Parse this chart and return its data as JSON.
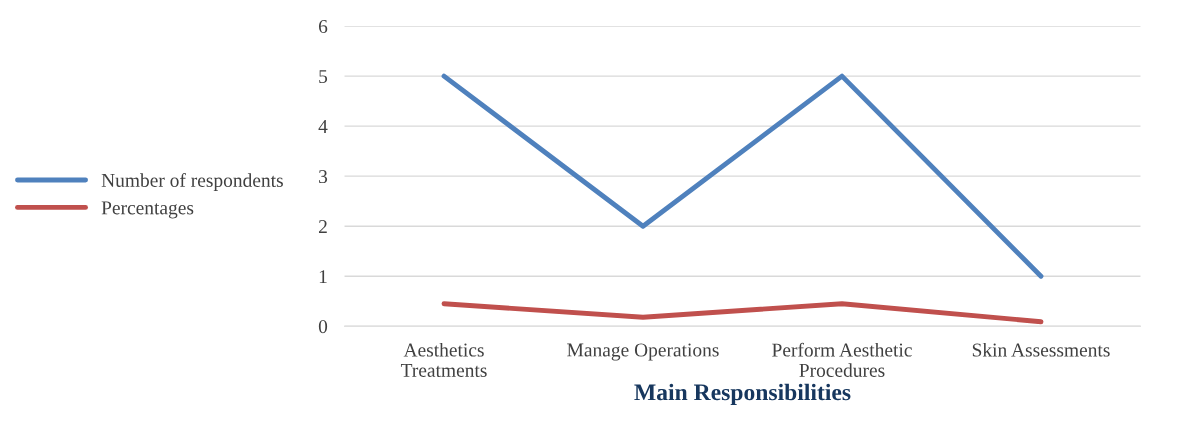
{
  "chart_data": {
    "type": "line",
    "xlabel": "Main Responsibilities",
    "categories": [
      "Aesthetics\nTreatments",
      "Manage Operations",
      "Perform Aesthetic\nProcedures",
      "Skin Assessments"
    ],
    "series": [
      {
        "name": "Number of respondents",
        "color": "#4f81bd",
        "values": [
          5,
          2,
          5,
          1
        ]
      },
      {
        "name": "Percentages",
        "color": "#c0504d",
        "values": [
          0.45,
          0.18,
          0.45,
          0.09
        ]
      }
    ],
    "ylim": [
      0,
      6
    ],
    "yticks": [
      0,
      1,
      2,
      3,
      4,
      5,
      6
    ],
    "grid": "y",
    "legend": "left",
    "marker": "none",
    "line_style": "solid"
  }
}
